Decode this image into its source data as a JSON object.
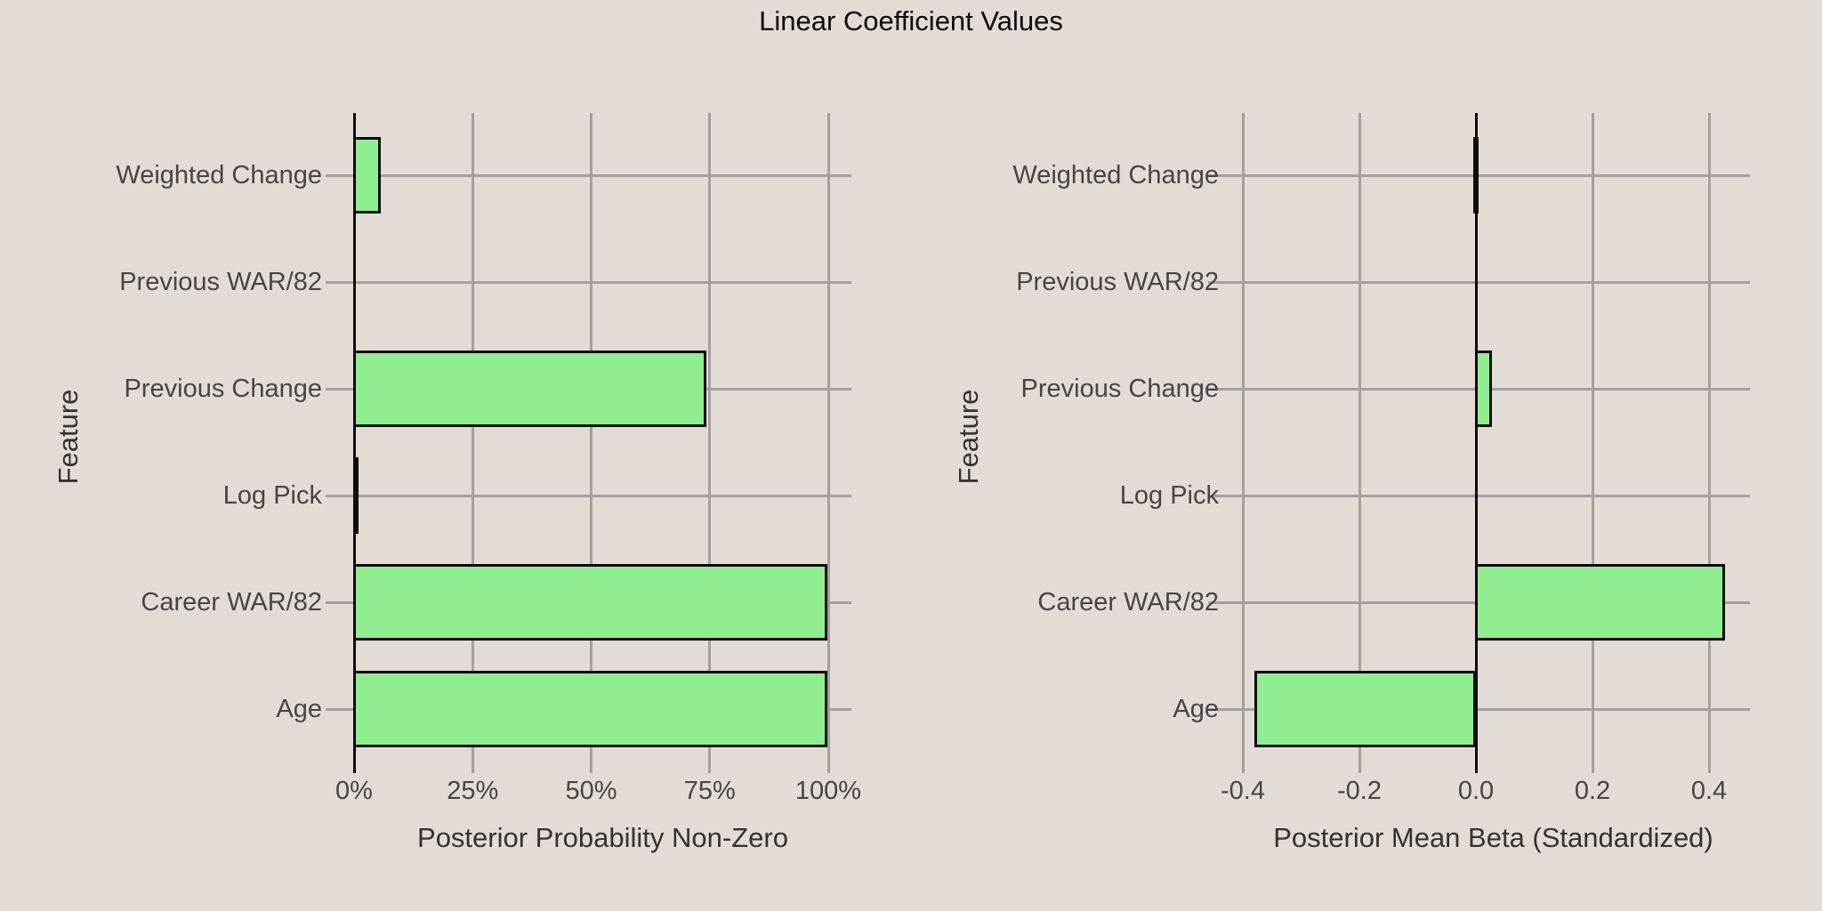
{
  "title": "Linear Coefficient Values",
  "colors": {
    "background": "#E3DBD6",
    "bar_fill": "#90EE90",
    "bar_border": "#0D0D0D",
    "gridline": "#A3A1A0",
    "axis_text": "#464646"
  },
  "chart_data": [
    {
      "type": "bar",
      "orientation": "horizontal",
      "panel": "left",
      "xlabel": "Posterior Probability Non-Zero",
      "ylabel": "Feature",
      "categories": [
        "Weighted Change",
        "Previous WAR/82",
        "Previous Change",
        "Log Pick",
        "Career WAR/82",
        "Age"
      ],
      "values": [
        6,
        0,
        74.5,
        1,
        100,
        100
      ],
      "value_unit": "percent",
      "x_ticks": [
        {
          "value": 0,
          "label": "0%"
        },
        {
          "value": 25,
          "label": "25%"
        },
        {
          "value": 50,
          "label": "50%"
        },
        {
          "value": 75,
          "label": "75%"
        },
        {
          "value": 100,
          "label": "100%"
        }
      ],
      "xlim": [
        0,
        104.9
      ],
      "grid": true,
      "legend": false
    },
    {
      "type": "bar",
      "orientation": "horizontal",
      "panel": "right",
      "xlabel": "Posterior Mean Beta (Standardized)",
      "ylabel": "Feature",
      "categories": [
        "Weighted Change",
        "Previous WAR/82",
        "Previous Change",
        "Log Pick",
        "Career WAR/82",
        "Age"
      ],
      "values": [
        -0.005,
        0,
        0.03,
        0,
        0.43,
        -0.38
      ],
      "value_unit": "standardized beta",
      "x_ticks": [
        {
          "value": -0.4,
          "label": "-0.4"
        },
        {
          "value": -0.2,
          "label": "-0.2"
        },
        {
          "value": 0,
          "label": "0.0"
        },
        {
          "value": 0.2,
          "label": "0.2"
        },
        {
          "value": 0.4,
          "label": "0.4"
        }
      ],
      "xlim": [
        -0.41,
        0.47
      ],
      "grid": true,
      "legend": false
    }
  ]
}
